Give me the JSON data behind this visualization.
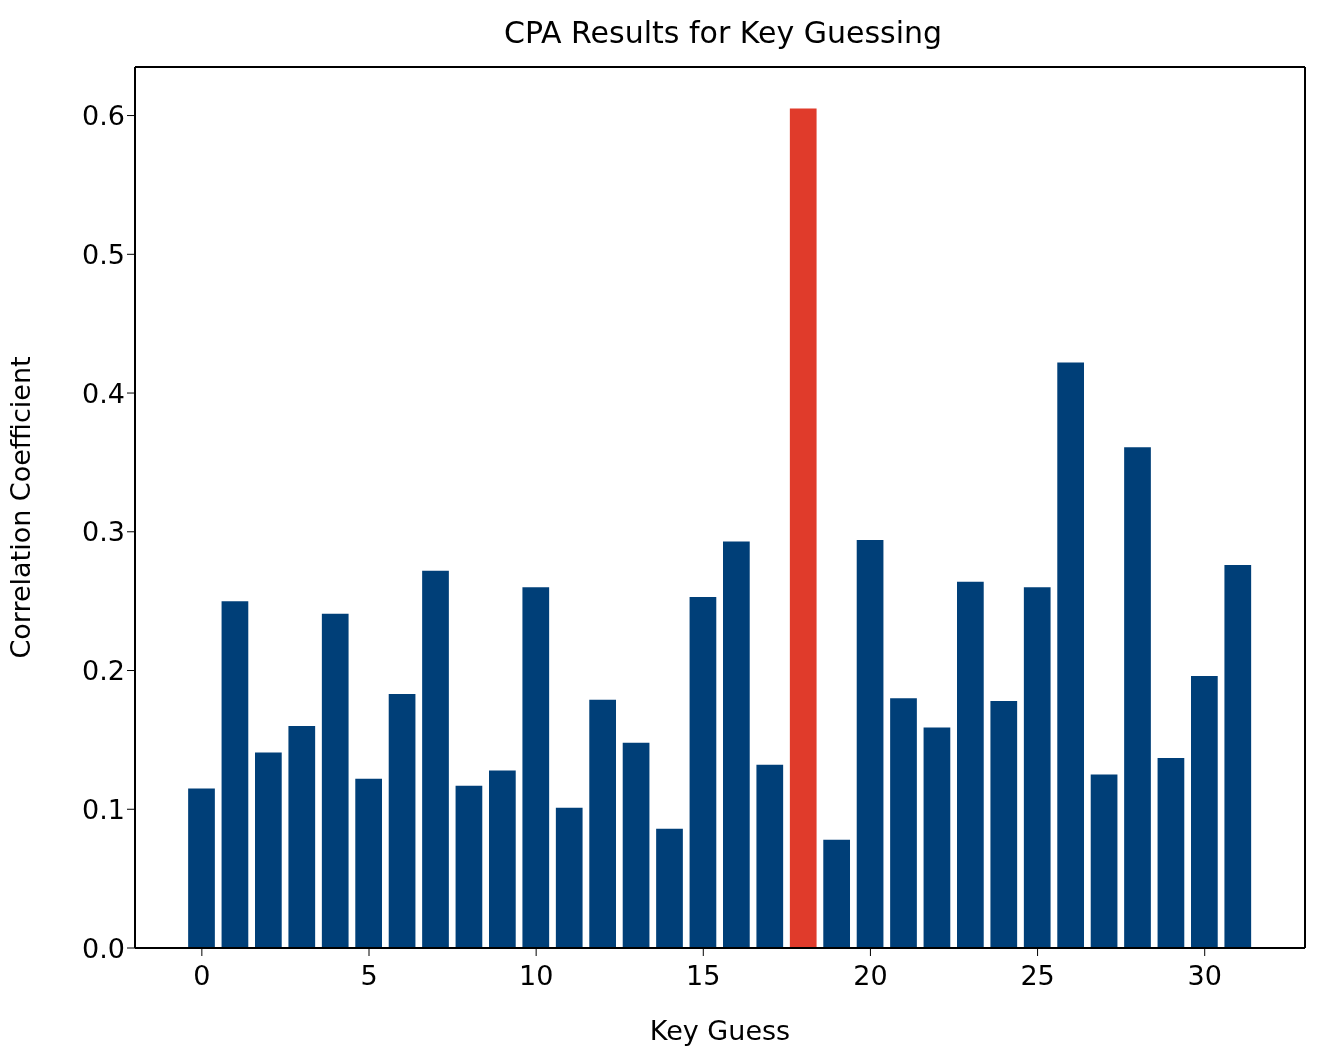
{
  "chart_data": {
    "type": "bar",
    "title": "CPA Results for Key Guessing",
    "xlabel": "Key Guess",
    "ylabel": "Correlation Coefficient",
    "x": [
      0,
      1,
      2,
      3,
      4,
      5,
      6,
      7,
      8,
      9,
      10,
      11,
      12,
      13,
      14,
      15,
      16,
      17,
      18,
      19,
      20,
      21,
      22,
      23,
      24,
      25,
      26,
      27,
      28,
      29,
      30,
      31
    ],
    "values": [
      0.115,
      0.25,
      0.141,
      0.16,
      0.241,
      0.122,
      0.183,
      0.272,
      0.117,
      0.128,
      0.26,
      0.101,
      0.179,
      0.148,
      0.086,
      0.253,
      0.293,
      0.132,
      0.605,
      0.078,
      0.294,
      0.18,
      0.159,
      0.264,
      0.178,
      0.26,
      0.422,
      0.125,
      0.361,
      0.137,
      0.196,
      0.276
    ],
    "colors": [
      "#003f78",
      "#003f78",
      "#003f78",
      "#003f78",
      "#003f78",
      "#003f78",
      "#003f78",
      "#003f78",
      "#003f78",
      "#003f78",
      "#003f78",
      "#003f78",
      "#003f78",
      "#003f78",
      "#003f78",
      "#003f78",
      "#003f78",
      "#003f78",
      "#e03b2b",
      "#003f78",
      "#003f78",
      "#003f78",
      "#003f78",
      "#003f78",
      "#003f78",
      "#003f78",
      "#003f78",
      "#003f78",
      "#003f78",
      "#003f78",
      "#003f78",
      "#003f78"
    ],
    "xlim": [
      -2,
      33
    ],
    "xticks": [
      0,
      5,
      10,
      15,
      20,
      25,
      30
    ],
    "ylim": [
      0,
      0.635
    ],
    "yticks": [
      {
        "value": 0,
        "label": "0.0"
      },
      0.1,
      0.2,
      0.3,
      0.4,
      0.5,
      0.6
    ],
    "grid": false,
    "legend": false
  }
}
